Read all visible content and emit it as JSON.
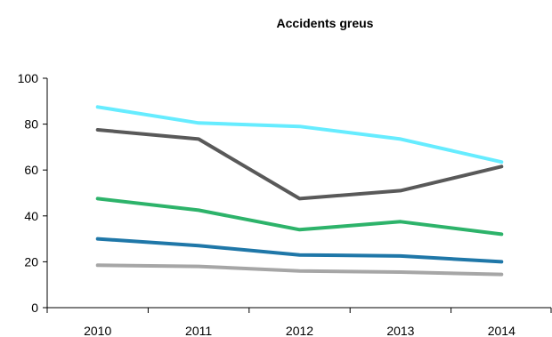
{
  "chart_data": {
    "type": "line",
    "title": "Accidents greus",
    "categories": [
      "2010",
      "2011",
      "2012",
      "2013",
      "2014"
    ],
    "ylim": [
      0,
      100
    ],
    "yticks": [
      0,
      20,
      40,
      60,
      80,
      100
    ],
    "grid": false,
    "series": [
      {
        "color": "#66ECFF",
        "values": [
          87.5,
          80.5,
          79,
          73.5,
          63.5
        ]
      },
      {
        "color": "#595959",
        "values": [
          77.5,
          73.5,
          47.5,
          51,
          61.5
        ]
      },
      {
        "color": "#2DB36A",
        "values": [
          47.5,
          42.5,
          34,
          37.5,
          32
        ]
      },
      {
        "color": "#1F77A8",
        "values": [
          30,
          27,
          23,
          22.5,
          20
        ]
      },
      {
        "color": "#A6A6A6",
        "values": [
          18.5,
          18,
          16,
          15.5,
          14.5
        ]
      }
    ]
  }
}
